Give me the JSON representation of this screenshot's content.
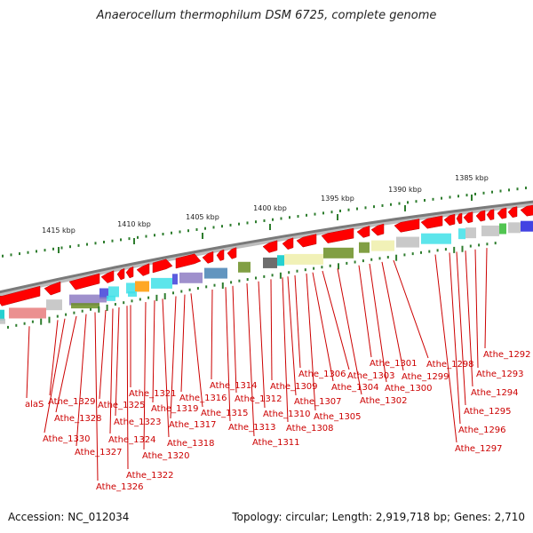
{
  "title": "Anaerocellum thermophilum DSM 6725, complete genome",
  "footer": {
    "accession": "Accession: NC_012034",
    "summary": "Topology: circular; Length: 2,919,718 bp; Genes: 2,710"
  },
  "ruler": [
    "1415 kbp",
    "1410 kbp",
    "1405 kbp",
    "1400 kbp",
    "1395 kbp",
    "1390 kbp",
    "1385 kbp"
  ],
  "genes": [
    "alaS",
    "Athe_1330",
    "Athe_1329",
    "Athe_1328",
    "Athe_1327",
    "Athe_1326",
    "Athe_1325",
    "Athe_1324",
    "Athe_1323",
    "Athe_1322",
    "Athe_1321",
    "Athe_1320",
    "Athe_1319",
    "Athe_1318",
    "Athe_1317",
    "Athe_1316",
    "Athe_1315",
    "Athe_1314",
    "Athe_1313",
    "Athe_1312",
    "Athe_1311",
    "Athe_1310",
    "Athe_1309",
    "Athe_1308",
    "Athe_1307",
    "Athe_1306",
    "Athe_1305",
    "Athe_1304",
    "Athe_1303",
    "Athe_1302",
    "Athe_1301",
    "Athe_1300",
    "Athe_1299",
    "Athe_1298",
    "Athe_1297",
    "Athe_1296",
    "Athe_1295",
    "Athe_1294",
    "Athe_1293",
    "Athe_1292"
  ],
  "colors": {
    "gene": "#ff0000",
    "label": "#cc0000",
    "tick": "#2e7d2e",
    "backbone": "#8c8c8c"
  }
}
